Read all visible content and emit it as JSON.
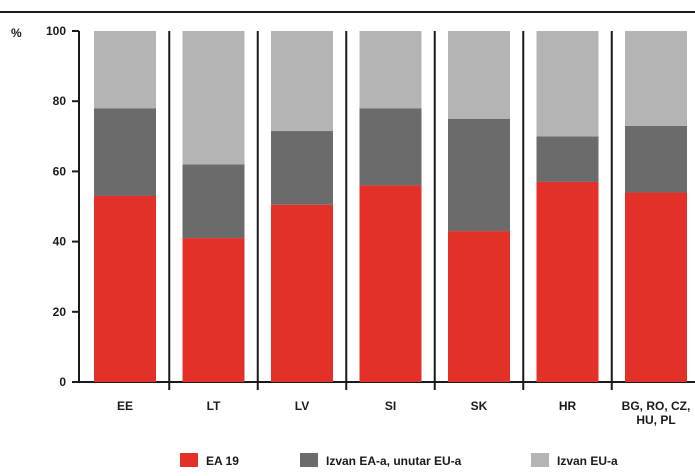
{
  "chart_data": {
    "type": "bar",
    "stacked": true,
    "unit_label": "%",
    "ylim": [
      0,
      100
    ],
    "yticks": [
      0,
      20,
      40,
      60,
      80,
      100
    ],
    "categories": [
      "EE",
      "LT",
      "LV",
      "SI",
      "SK",
      "HR",
      "BG, RO, CZ, HU, PL"
    ],
    "category_lines": [
      [
        "EE"
      ],
      [
        "LT"
      ],
      [
        "LV"
      ],
      [
        "SI"
      ],
      [
        "SK"
      ],
      [
        "HR"
      ],
      [
        "BG, RO, CZ,",
        "HU, PL"
      ]
    ],
    "series": [
      {
        "name": "EA 19",
        "color": "#e3312a",
        "values": [
          53,
          41,
          50.5,
          56,
          43,
          57,
          54
        ]
      },
      {
        "name": "Izvan EA-a, unutar EU-a",
        "color": "#6b6b6b",
        "values": [
          25,
          21,
          21,
          22,
          32,
          13,
          19
        ]
      },
      {
        "name": "Izvan EU-a",
        "color": "#b4b4b4",
        "values": [
          22,
          38,
          28.5,
          22,
          25,
          30,
          27
        ]
      }
    ],
    "legend_position": "bottom",
    "grid": false
  }
}
